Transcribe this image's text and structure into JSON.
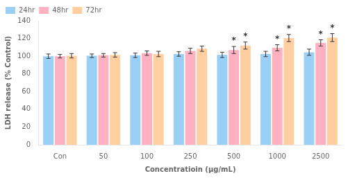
{
  "chart_data": {
    "type": "bar",
    "categories": [
      "Con",
      "50",
      "100",
      "250",
      "500",
      "1000",
      "2500"
    ],
    "series": [
      {
        "name": "24hr",
        "values": [
          100.0,
          100.5,
          101.0,
          102.5,
          101.5,
          102.5,
          104.5
        ],
        "errors": [
          2.5,
          2.0,
          2.5,
          2.5,
          3.0,
          3.0,
          3.5
        ]
      },
      {
        "name": "48hr",
        "values": [
          100.0,
          101.0,
          103.5,
          106.0,
          107.0,
          109.5,
          115.0
        ],
        "errors": [
          2.0,
          2.0,
          2.5,
          3.0,
          4.0,
          3.5,
          3.5
        ]
      },
      {
        "name": "72hr",
        "values": [
          100.5,
          101.5,
          102.5,
          108.5,
          112.0,
          120.5,
          121.0
        ],
        "errors": [
          2.5,
          2.5,
          3.0,
          3.0,
          4.0,
          4.0,
          4.5
        ]
      }
    ],
    "xlabel": "Concentratioin (μg/mL)",
    "ylabel": "LDH release (% Control)",
    "ylim": [
      0,
      140
    ],
    "yticks": [
      0,
      20,
      40,
      60,
      80,
      100,
      120,
      140
    ],
    "grid": false,
    "legend": "upper left",
    "annotations": [
      {
        "text": "*",
        "series": "48hr",
        "category": "500"
      },
      {
        "text": "*",
        "series": "72hr",
        "category": "500"
      },
      {
        "text": "*",
        "series": "48hr",
        "category": "1000"
      },
      {
        "text": "*",
        "series": "72hr",
        "category": "1000"
      },
      {
        "text": "*",
        "series": "48hr",
        "category": "2500"
      },
      {
        "text": "*",
        "series": "72hr",
        "category": "2500"
      }
    ]
  }
}
